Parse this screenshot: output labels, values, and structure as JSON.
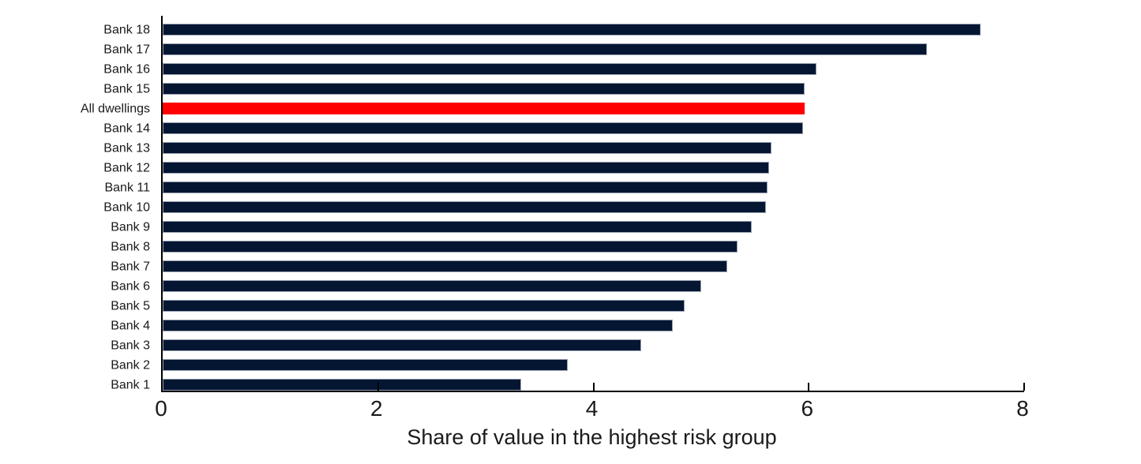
{
  "chart_data": {
    "type": "bar",
    "orientation": "horizontal",
    "title": "",
    "xlabel": "Share of value in the highest risk group",
    "ylabel": "",
    "xlim": [
      0,
      8
    ],
    "xticks": [
      0,
      2,
      4,
      6,
      8
    ],
    "grid": false,
    "legend": false,
    "categories": [
      "Bank 18",
      "Bank 17",
      "Bank 16",
      "Bank 15",
      "All dwellings",
      "Bank 14",
      "Bank 13",
      "Bank 12",
      "Bank 11",
      "Bank 10",
      "Bank 9",
      "Bank 8",
      "Bank 7",
      "Bank 6",
      "Bank 5",
      "Bank 4",
      "Bank 3",
      "Bank 2",
      "Bank 1"
    ],
    "values": [
      7.6,
      7.1,
      6.07,
      5.96,
      5.96,
      5.95,
      5.65,
      5.63,
      5.62,
      5.6,
      5.47,
      5.34,
      5.24,
      5.0,
      4.85,
      4.74,
      4.44,
      3.76,
      3.33
    ],
    "highlight_category": "All dwellings",
    "colors": {
      "bar": "#041632",
      "highlight": "#fe0000",
      "axis": "#000000",
      "text": "#1a1a1a"
    }
  }
}
